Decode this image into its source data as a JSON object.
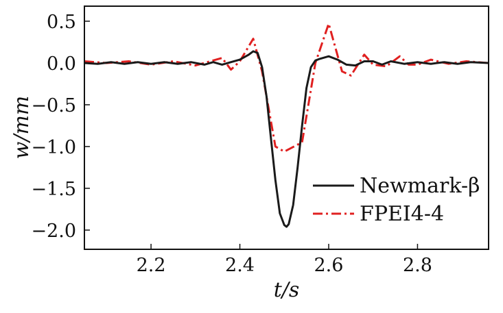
{
  "chart_data": {
    "type": "line",
    "xlabel": "t/s",
    "ylabel": "w/mm",
    "xlim": [
      2.05,
      2.96
    ],
    "ylim": [
      -2.23,
      0.68
    ],
    "x_ticks": [
      2.2,
      2.4,
      2.6,
      2.8
    ],
    "x_tick_labels": [
      "2.2",
      "2.4",
      "2.6",
      "2.8"
    ],
    "y_ticks": [
      0.5,
      0.0,
      -0.5,
      -1.0,
      -1.5,
      -2.0
    ],
    "y_tick_labels": [
      "0.5",
      "0.0",
      "−0.5",
      "−1.0",
      "−1.5",
      "−2.0"
    ],
    "grid": false,
    "legend_position": "lower-right",
    "series": [
      {
        "name": "Newmark-β",
        "color": "#1a1a1a",
        "style": "solid",
        "x": [
          2.05,
          2.08,
          2.11,
          2.14,
          2.17,
          2.2,
          2.23,
          2.26,
          2.29,
          2.32,
          2.34,
          2.36,
          2.38,
          2.4,
          2.42,
          2.43,
          2.44,
          2.45,
          2.46,
          2.47,
          2.48,
          2.49,
          2.5,
          2.505,
          2.51,
          2.52,
          2.53,
          2.54,
          2.55,
          2.56,
          2.57,
          2.58,
          2.6,
          2.62,
          2.64,
          2.66,
          2.68,
          2.7,
          2.72,
          2.74,
          2.77,
          2.8,
          2.83,
          2.86,
          2.89,
          2.92,
          2.96
        ],
        "y": [
          0.0,
          -0.01,
          0.01,
          -0.01,
          0.01,
          -0.01,
          0.01,
          -0.01,
          0.01,
          -0.02,
          0.01,
          -0.02,
          0.01,
          0.04,
          0.1,
          0.14,
          0.12,
          -0.05,
          -0.4,
          -0.9,
          -1.4,
          -1.8,
          -1.94,
          -1.96,
          -1.93,
          -1.7,
          -1.25,
          -0.75,
          -0.3,
          -0.05,
          0.03,
          0.05,
          0.08,
          0.04,
          -0.02,
          -0.03,
          0.02,
          0.02,
          -0.02,
          0.02,
          -0.01,
          0.01,
          -0.01,
          0.01,
          -0.01,
          0.01,
          0.0
        ]
      },
      {
        "name": "FPEI4-4",
        "color": "#e02020",
        "style": "dashdot",
        "x": [
          2.05,
          2.1,
          2.15,
          2.2,
          2.25,
          2.3,
          2.36,
          2.38,
          2.4,
          2.43,
          2.45,
          2.48,
          2.5,
          2.54,
          2.57,
          2.6,
          2.63,
          2.65,
          2.68,
          2.7,
          2.73,
          2.76,
          2.78,
          2.8,
          2.83,
          2.87,
          2.91,
          2.96
        ],
        "y": [
          0.02,
          0.0,
          0.02,
          -0.02,
          0.02,
          -0.03,
          0.06,
          -0.08,
          0.02,
          0.29,
          -0.1,
          -1.0,
          -1.06,
          -0.95,
          0.0,
          0.47,
          -0.1,
          -0.15,
          0.1,
          -0.02,
          -0.04,
          0.08,
          -0.02,
          -0.02,
          0.04,
          -0.01,
          0.02,
          0.0
        ]
      }
    ]
  }
}
